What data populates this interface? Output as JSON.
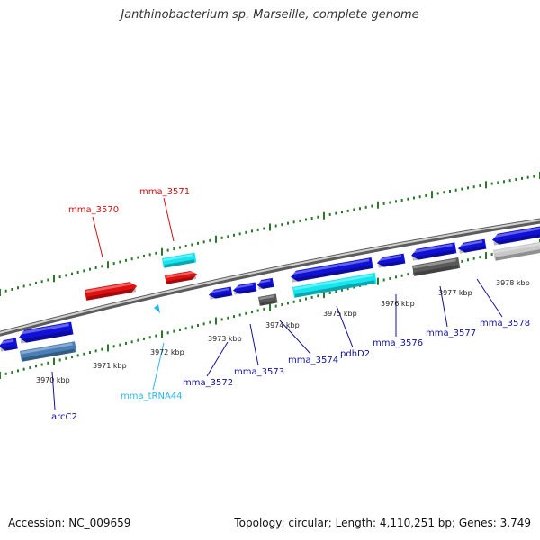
{
  "title": "Janthinobacterium sp. Marseille, complete genome",
  "footer": {
    "accession": "Accession: NC_009659",
    "topology": "Topology: circular; Length: 4,110,251 bp; Genes: 3,749"
  },
  "colors": {
    "background": "#ffffff",
    "backbone": "#8c8c8c",
    "tick": "#2a7a2a",
    "gene_red": "#e01010",
    "gene_blue": "#1010d8",
    "gene_cyan": "#14e6f0",
    "gene_dark_gray": "#5a5a5a",
    "gene_light_gray": "#c8c8c8",
    "gene_steel": "#4a7fb5",
    "label_red": "#cc1111",
    "label_blue": "#11119a",
    "label_cyan": "#2ab8e8"
  },
  "kbp_labels": [
    "3970 kbp",
    "3971 kbp",
    "3972 kbp",
    "3973 kbp",
    "3974 kbp",
    "3975 kbp",
    "3976 kbp",
    "3977 kbp",
    "3978 kbp"
  ],
  "gene_labels": [
    {
      "text": "mma_3570",
      "color": "red"
    },
    {
      "text": "mma_3571",
      "color": "red"
    },
    {
      "text": "arcC2",
      "color": "blue"
    },
    {
      "text": "mma_tRNA44",
      "color": "cyan"
    },
    {
      "text": "mma_3572",
      "color": "blue"
    },
    {
      "text": "mma_3573",
      "color": "blue"
    },
    {
      "text": "mma_3574",
      "color": "blue"
    },
    {
      "text": "pdhD2",
      "color": "blue"
    },
    {
      "text": "mma_3576",
      "color": "blue"
    },
    {
      "text": "mma_3577",
      "color": "blue"
    },
    {
      "text": "mma_3578",
      "color": "blue"
    }
  ]
}
